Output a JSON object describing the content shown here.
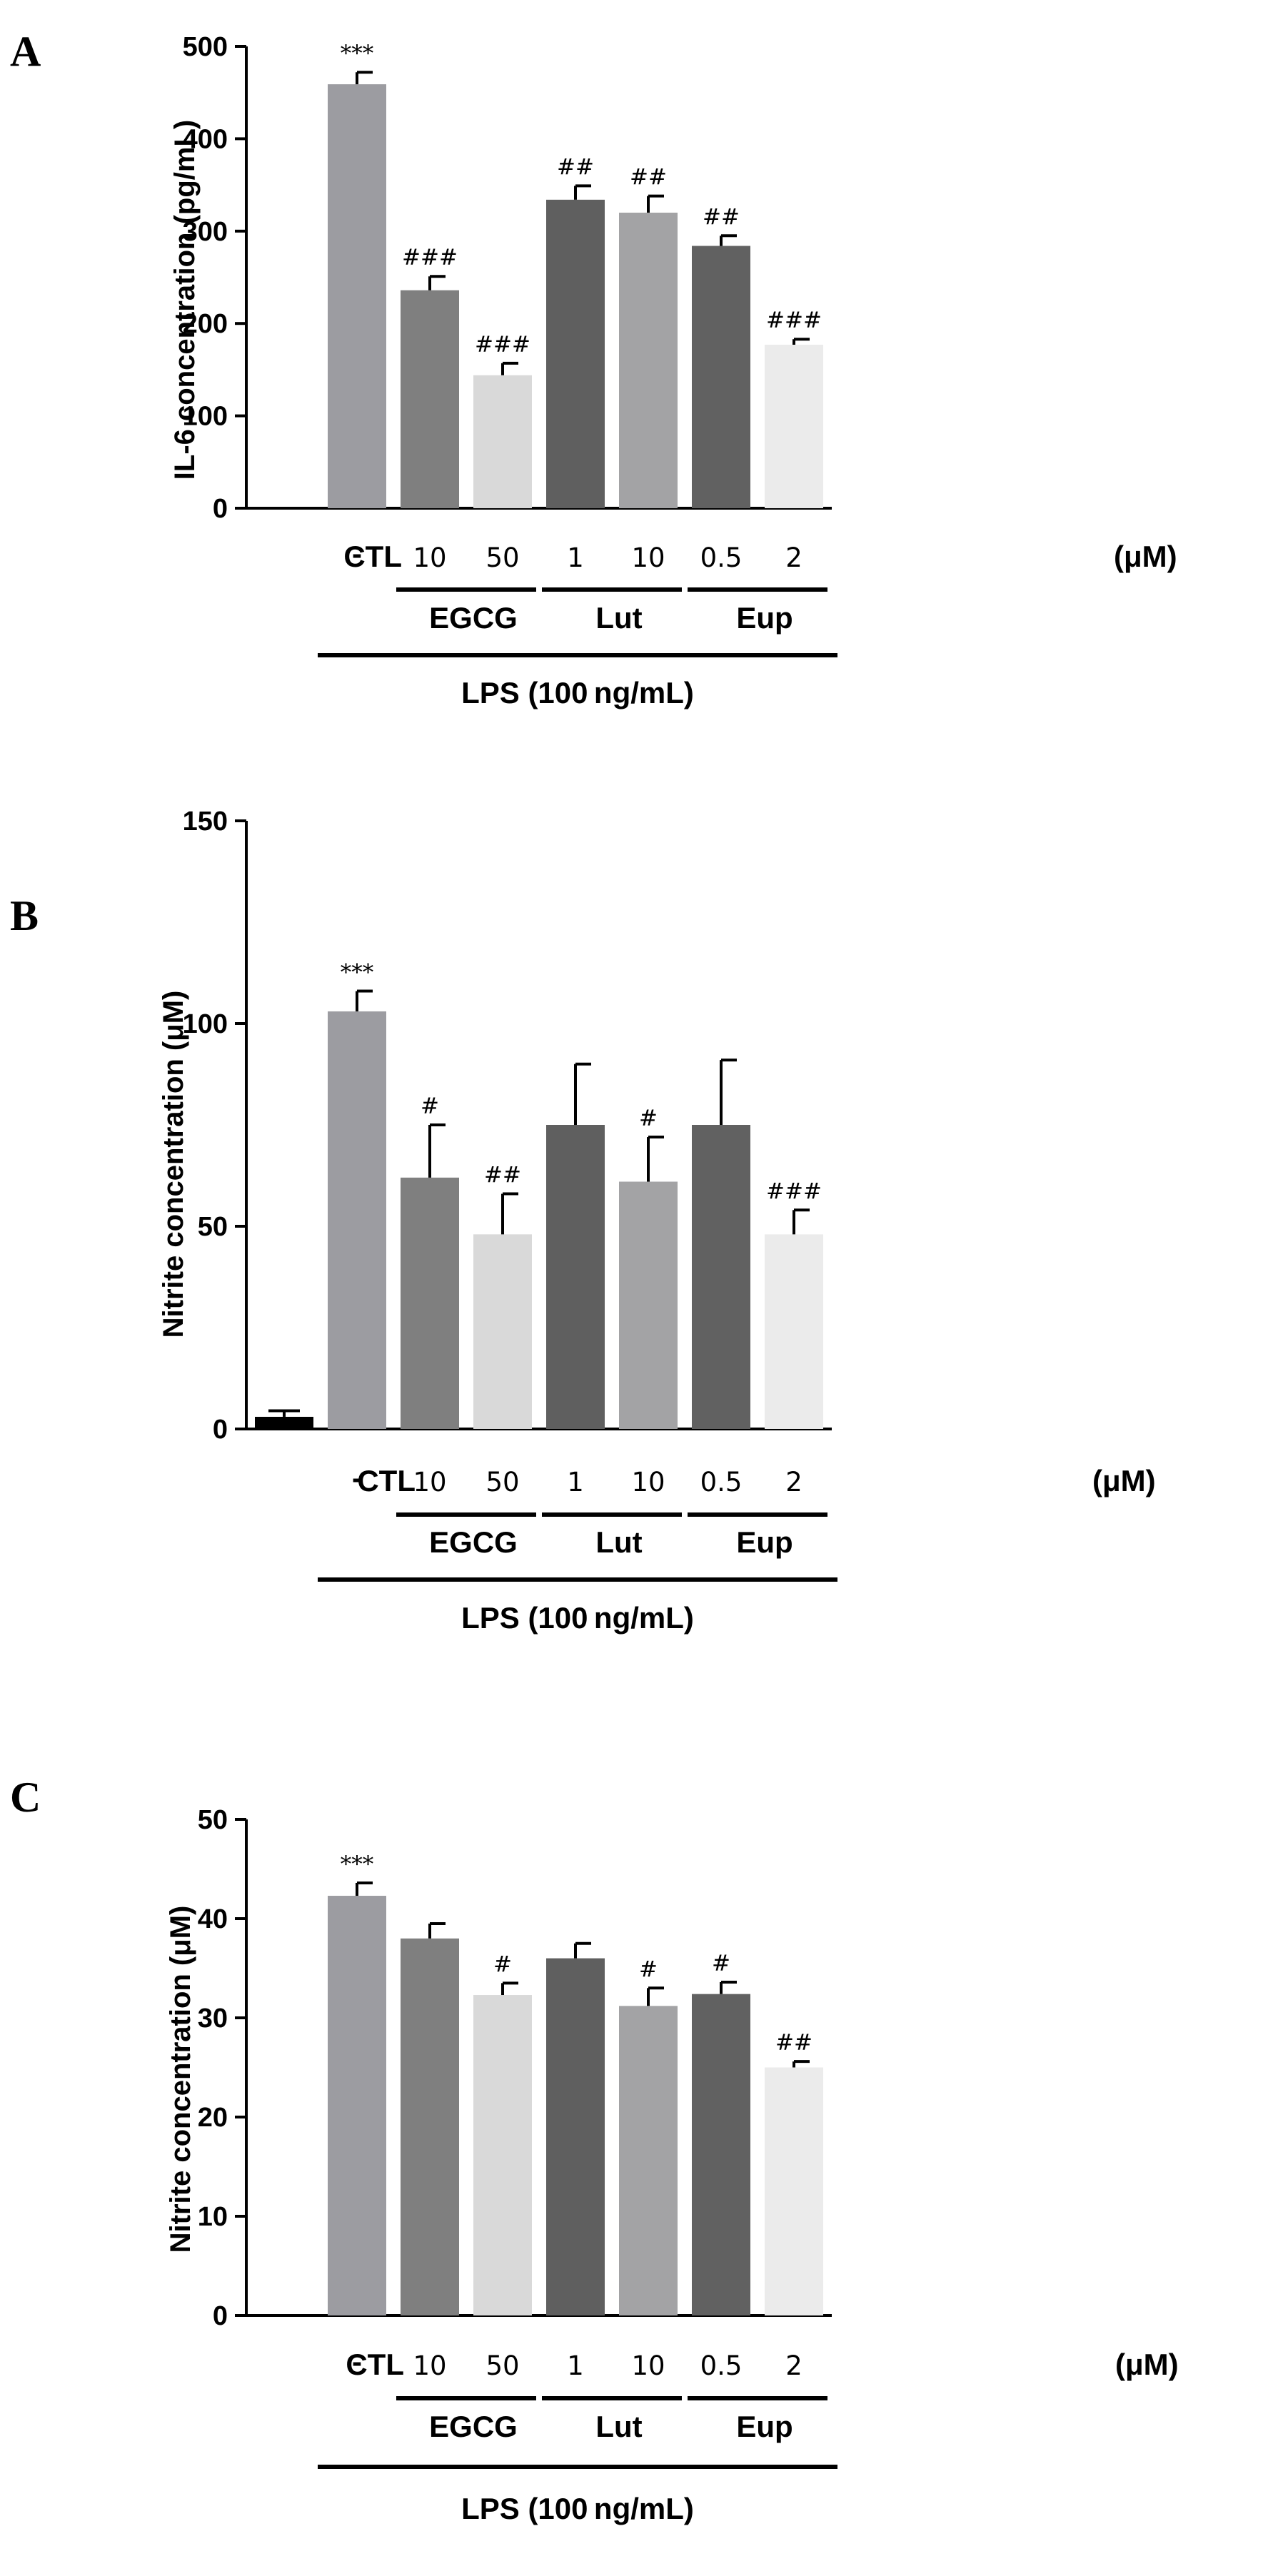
{
  "chart_data": [
    {
      "type": "bar",
      "panel": "A",
      "ylabel": "IL-6 concentration (pg/mL)",
      "ylim": [
        0,
        500
      ],
      "yticks": [
        0,
        100,
        200,
        300,
        400,
        500
      ],
      "categories": [
        "CTL",
        "-",
        "10",
        "50",
        "1",
        "10",
        "0.5",
        "2"
      ],
      "unit_label": "(μM)",
      "groups": [
        {
          "label": "EGCG",
          "from": 2,
          "to": 3
        },
        {
          "label": "Lut",
          "from": 4,
          "to": 5
        },
        {
          "label": "Eup",
          "from": 6,
          "to": 7
        }
      ],
      "treatment_label": "LPS (100 ng/mL)",
      "values": [
        0,
        459,
        236,
        144,
        334,
        320,
        284,
        177
      ],
      "errors": [
        0,
        13,
        15,
        13,
        15,
        18,
        11,
        6
      ],
      "significance": [
        "",
        "***",
        "###",
        "###",
        "##",
        "##",
        "##",
        "###"
      ],
      "colors": [
        "#9b9ca0",
        "#9c9ca1",
        "#7f7f7f",
        "#d9d9d9",
        "#5f5f5f",
        "#a3a3a5",
        "#616161",
        "#ebebeb"
      ]
    },
    {
      "type": "bar",
      "panel": "B",
      "ylabel": "Nitrite concentration (μM)",
      "ylim": [
        0,
        150
      ],
      "yticks": [
        0,
        50,
        100,
        150
      ],
      "categories": [
        "CTL",
        "-",
        "10",
        "50",
        "1",
        "10",
        "0.5",
        "2"
      ],
      "unit_label": "(μM)",
      "groups": [
        {
          "label": "EGCG",
          "from": 2,
          "to": 3
        },
        {
          "label": "Lut",
          "from": 4,
          "to": 5
        },
        {
          "label": "Eup",
          "from": 6,
          "to": 7
        }
      ],
      "treatment_label": "LPS (100 ng/mL)",
      "values": [
        3,
        103,
        62,
        48,
        75,
        61,
        75,
        48
      ],
      "errors": [
        1.5,
        5,
        13,
        10,
        15,
        11,
        16,
        6
      ],
      "significance": [
        "",
        "***",
        "#",
        "##",
        "",
        "#",
        "",
        "###"
      ],
      "colors": [
        "#000000",
        "#9c9ca1",
        "#7f7f7f",
        "#d9d9d9",
        "#5f5f5f",
        "#a3a3a5",
        "#616161",
        "#ebebeb"
      ]
    },
    {
      "type": "bar",
      "panel": "C",
      "ylabel": "Nitrite concentration (μM)",
      "ylim": [
        0,
        50
      ],
      "yticks": [
        0,
        10,
        20,
        30,
        40,
        50
      ],
      "categories": [
        "CTL",
        "-",
        "10",
        "50",
        "1",
        "10",
        "0.5",
        "2"
      ],
      "unit_label": "(μM)",
      "groups": [
        {
          "label": "EGCG",
          "from": 2,
          "to": 3
        },
        {
          "label": "Lut",
          "from": 4,
          "to": 5
        },
        {
          "label": "Eup",
          "from": 6,
          "to": 7
        }
      ],
      "treatment_label": "LPS (100 ng/mL)",
      "values": [
        0,
        42.3,
        38,
        32.3,
        36,
        31.2,
        32.4,
        25
      ],
      "errors": [
        0,
        1.3,
        1.5,
        1.2,
        1.5,
        1.8,
        1.2,
        0.6
      ],
      "significance": [
        "",
        "***",
        "",
        "#",
        "",
        "#",
        "#",
        "##"
      ],
      "colors": [
        "#9b9ca0",
        "#9c9ca1",
        "#7f7f7f",
        "#d9d9d9",
        "#5f5f5f",
        "#a3a3a5",
        "#616161",
        "#ebebeb"
      ]
    }
  ]
}
